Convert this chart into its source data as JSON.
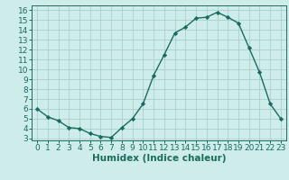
{
  "x": [
    0,
    1,
    2,
    3,
    4,
    5,
    6,
    7,
    8,
    9,
    10,
    11,
    12,
    13,
    14,
    15,
    16,
    17,
    18,
    19,
    20,
    21,
    22,
    23
  ],
  "y": [
    6.0,
    5.2,
    4.8,
    4.1,
    4.0,
    3.5,
    3.2,
    3.1,
    4.1,
    5.0,
    6.5,
    9.4,
    11.5,
    13.7,
    14.3,
    15.2,
    15.3,
    15.8,
    15.3,
    14.7,
    12.2,
    9.7,
    6.5,
    5.0
  ],
  "xlabel": "Humidex (Indice chaleur)",
  "xlim": [
    -0.5,
    23.5
  ],
  "ylim": [
    2.8,
    16.5
  ],
  "yticks": [
    3,
    4,
    5,
    6,
    7,
    8,
    9,
    10,
    11,
    12,
    13,
    14,
    15,
    16
  ],
  "xticks": [
    0,
    1,
    2,
    3,
    4,
    5,
    6,
    7,
    8,
    9,
    10,
    11,
    12,
    13,
    14,
    15,
    16,
    17,
    18,
    19,
    20,
    21,
    22,
    23
  ],
  "line_color": "#1a6b60",
  "bg_color": "#ceecea",
  "grid_color": "#aacfcc",
  "axis_color": "#1a6b60",
  "xlabel_fontsize": 7.5,
  "tick_fontsize": 6.5
}
